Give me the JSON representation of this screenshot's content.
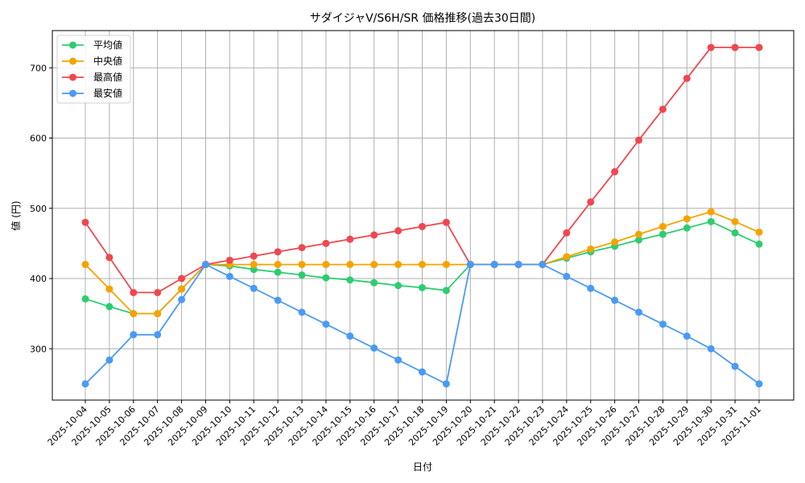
{
  "chart_data": {
    "type": "line",
    "title": "サダイジャV/S6H/SR 価格推移(過去30日間)",
    "xlabel": "日付",
    "ylabel": "値 (円)",
    "ylim": [
      225,
      752
    ],
    "yticks": [
      300,
      400,
      500,
      600,
      700
    ],
    "grid": true,
    "legend_position": "upper left",
    "categories": [
      "2025-10-04",
      "2025-10-05",
      "2025-10-06",
      "2025-10-07",
      "2025-10-08",
      "2025-10-09",
      "2025-10-10",
      "2025-10-11",
      "2025-10-12",
      "2025-10-13",
      "2025-10-14",
      "2025-10-15",
      "2025-10-16",
      "2025-10-17",
      "2025-10-18",
      "2025-10-19",
      "2025-10-20",
      "2025-10-21",
      "2025-10-22",
      "2025-10-23",
      "2025-10-24",
      "2025-10-25",
      "2025-10-26",
      "2025-10-27",
      "2025-10-28",
      "2025-10-29",
      "2025-10-30",
      "2025-10-31",
      "2025-11-01"
    ],
    "series": [
      {
        "name": "平均値",
        "color": "#2ecc71",
        "values": [
          371,
          360,
          350,
          350,
          385,
          420,
          418,
          413,
          409,
          405,
          401,
          398,
          394,
          390,
          387,
          383,
          420,
          420,
          420,
          420,
          429,
          438,
          446,
          455,
          463,
          472,
          481,
          465,
          449
        ]
      },
      {
        "name": "中央値",
        "color": "#f5a300",
        "values": [
          420,
          385,
          350,
          350,
          385,
          420,
          420,
          420,
          420,
          420,
          420,
          420,
          420,
          420,
          420,
          420,
          420,
          420,
          420,
          420,
          431,
          442,
          452,
          463,
          474,
          485,
          495,
          481,
          466
        ]
      },
      {
        "name": "最高値",
        "color": "#f0474f",
        "values": [
          480,
          430,
          380,
          380,
          400,
          420,
          426,
          432,
          438,
          444,
          450,
          456,
          462,
          468,
          474,
          480,
          420,
          420,
          420,
          420,
          465,
          509,
          552,
          597,
          641,
          685,
          729,
          729,
          729
        ]
      },
      {
        "name": "最安値",
        "color": "#4a9af5",
        "values": [
          250,
          284,
          320,
          320,
          370,
          420,
          403,
          386,
          369,
          352,
          335,
          318,
          301,
          284,
          267,
          250,
          420,
          420,
          420,
          420,
          403,
          386,
          369,
          352,
          335,
          318,
          300,
          275,
          250
        ]
      }
    ]
  }
}
